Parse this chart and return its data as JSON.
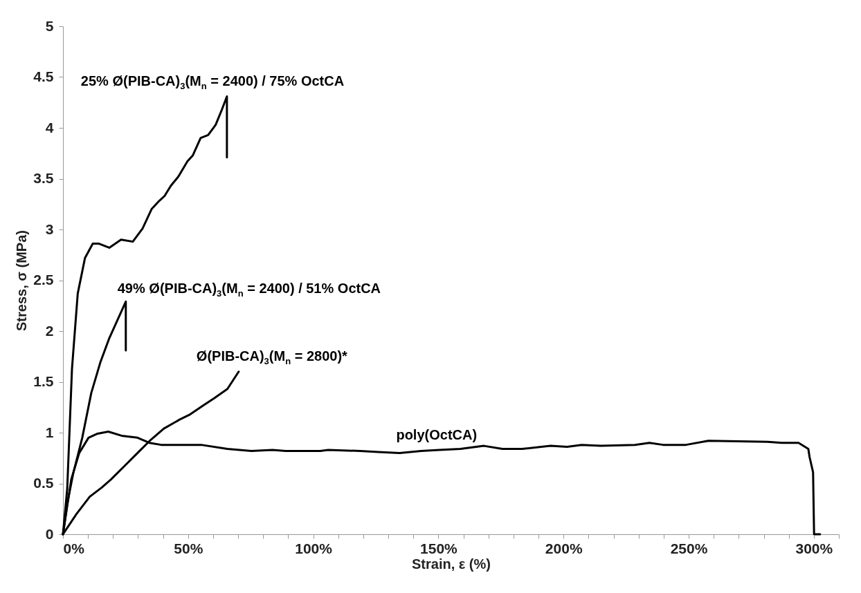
{
  "chart_data": {
    "type": "line",
    "xlabel": "Strain, ε (%)",
    "ylabel": "Stress, σ (MPa)",
    "xlim": [
      0,
      310
    ],
    "ylim": [
      0,
      5
    ],
    "xticks": [
      {
        "value": 0,
        "label": "0%"
      },
      {
        "value": 10,
        "label": null
      },
      {
        "value": 20,
        "label": null
      },
      {
        "value": 30,
        "label": null
      },
      {
        "value": 40,
        "label": null
      },
      {
        "value": 50,
        "label": "50%"
      },
      {
        "value": 60,
        "label": null
      },
      {
        "value": 70,
        "label": null
      },
      {
        "value": 80,
        "label": null
      },
      {
        "value": 90,
        "label": null
      },
      {
        "value": 100,
        "label": "100%"
      },
      {
        "value": 110,
        "label": null
      },
      {
        "value": 120,
        "label": null
      },
      {
        "value": 130,
        "label": null
      },
      {
        "value": 140,
        "label": null
      },
      {
        "value": 150,
        "label": "150%"
      },
      {
        "value": 160,
        "label": null
      },
      {
        "value": 170,
        "label": null
      },
      {
        "value": 180,
        "label": null
      },
      {
        "value": 190,
        "label": null
      },
      {
        "value": 200,
        "label": "200%"
      },
      {
        "value": 210,
        "label": null
      },
      {
        "value": 220,
        "label": null
      },
      {
        "value": 230,
        "label": null
      },
      {
        "value": 240,
        "label": null
      },
      {
        "value": 250,
        "label": "250%"
      },
      {
        "value": 260,
        "label": null
      },
      {
        "value": 270,
        "label": null
      },
      {
        "value": 280,
        "label": null
      },
      {
        "value": 290,
        "label": null
      },
      {
        "value": 300,
        "label": "300%"
      },
      {
        "value": 310,
        "label": null
      }
    ],
    "yticks": [
      0,
      0.5,
      1,
      1.5,
      2,
      2.5,
      3,
      3.5,
      4,
      4.5,
      5
    ],
    "grid": false,
    "legend": false,
    "line_style": "solid",
    "series": [
      {
        "name": "25% Ø(PIB-CA)$_{3}$(M$_{n}$ = 2400) / 75% OctCA",
        "color": "#000000",
        "x": [
          0,
          1.7,
          3.6,
          5.9,
          8.8,
          11.9,
          14.4,
          18.5,
          23.2,
          27.9,
          31.8,
          35.4,
          38.4,
          40.6,
          43.1,
          46.1,
          49.7,
          51.9,
          55,
          58,
          61,
          63.5,
          65.5,
          65.5
        ],
        "values": [
          0,
          0.45,
          1.63,
          2.37,
          2.72,
          2.86,
          2.86,
          2.82,
          2.9,
          2.88,
          3.01,
          3.2,
          3.28,
          3.33,
          3.43,
          3.52,
          3.67,
          3.73,
          3.9,
          3.93,
          4.03,
          4.18,
          4.31,
          3.71
        ]
      },
      {
        "name": "49% Ø(PIB-CA)$_{3}$(M$_{n}$ = 2400) / 51% OctCA",
        "color": "#000000",
        "x": [
          0,
          1.7,
          4.1,
          7.7,
          11.3,
          14.9,
          18.5,
          25.1,
          25.1
        ],
        "values": [
          0,
          0.3,
          0.6,
          0.95,
          1.39,
          1.69,
          1.93,
          2.29,
          1.81
        ]
      },
      {
        "name": "Ø(PIB-CA)$_{3}$(M$_{n}$ = 2800)*",
        "color": "#000000",
        "x": [
          0,
          5.4,
          10.7,
          15.5,
          19.2,
          24.5,
          29.8,
          35.1,
          40.3,
          46.7,
          50.8,
          56.2,
          60.5,
          65.7,
          70.2
        ],
        "values": [
          0,
          0.2,
          0.37,
          0.46,
          0.54,
          0.67,
          0.8,
          0.93,
          1.04,
          1.13,
          1.18,
          1.27,
          1.34,
          1.43,
          1.6
        ]
      },
      {
        "name": "poly(OctCA)",
        "color": "#000000",
        "x": [
          0,
          3.3,
          6.5,
          10.2,
          13.8,
          18.1,
          23.4,
          29.8,
          34.5,
          39.2,
          46.7,
          55.2,
          65.7,
          75.3,
          83.7,
          89,
          102.8,
          106,
          118.7,
          126,
          134.5,
          143.1,
          150.4,
          158.8,
          168.2,
          175.6,
          183.4,
          194.8,
          201.4,
          207.2,
          214.9,
          228.5,
          234.3,
          239.8,
          248.9,
          257.9,
          281.5,
          287.2,
          293.9,
          297.8,
          298.3,
          299.7,
          300.1,
          302.5
        ],
        "values": [
          0,
          0.54,
          0.8,
          0.95,
          0.99,
          1.01,
          0.97,
          0.95,
          0.9,
          0.88,
          0.88,
          0.88,
          0.84,
          0.82,
          0.83,
          0.82,
          0.82,
          0.83,
          0.82,
          0.81,
          0.8,
          0.82,
          0.83,
          0.84,
          0.87,
          0.84,
          0.84,
          0.87,
          0.86,
          0.88,
          0.87,
          0.88,
          0.9,
          0.88,
          0.88,
          0.92,
          0.91,
          0.9,
          0.9,
          0.84,
          0.76,
          0.61,
          0,
          0
        ]
      }
    ]
  }
}
